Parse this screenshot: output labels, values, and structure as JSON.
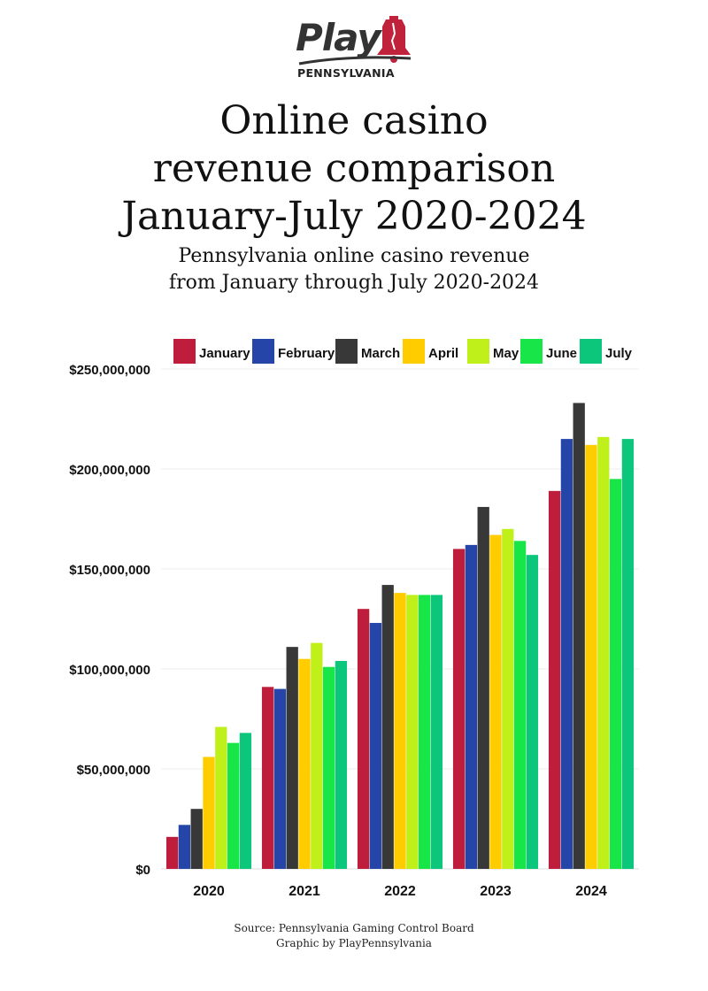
{
  "brand": {
    "name": "Play",
    "subname": "PENNSYLVANIA",
    "colors": {
      "dark": "#333333",
      "red": "#c0223b"
    }
  },
  "header": {
    "title_lines": [
      "Online casino",
      "revenue comparison",
      "January-July 2020-2024"
    ],
    "subtitle_lines": [
      "Pennsylvania online casino revenue",
      "from January through July 2020-2024"
    ]
  },
  "footer": {
    "source": "Source: Pennsylvania Gaming Control Board",
    "credit": "Graphic by PlayPennsylvania"
  },
  "chart_data": {
    "type": "bar",
    "title": "Online casino revenue comparison January-July 2020-2024",
    "xlabel": "",
    "ylabel": "",
    "categories": [
      "2020",
      "2021",
      "2022",
      "2023",
      "2024"
    ],
    "ylim": [
      0,
      250000000
    ],
    "yticks": [
      0,
      50000000,
      100000000,
      150000000,
      200000000,
      250000000
    ],
    "ytick_labels": [
      "$0",
      "$50,000,000",
      "$100,000,000",
      "$150,000,000",
      "$200,000,000",
      "$250,000,000"
    ],
    "legend_position": "top",
    "grid": true,
    "series": [
      {
        "name": "January",
        "color": "#be1e3c",
        "values": [
          16000000,
          91000000,
          130000000,
          160000000,
          189000000
        ]
      },
      {
        "name": "February",
        "color": "#2545a8",
        "values": [
          22000000,
          90000000,
          123000000,
          162000000,
          215000000
        ]
      },
      {
        "name": "March",
        "color": "#383838",
        "values": [
          30000000,
          111000000,
          142000000,
          181000000,
          233000000
        ]
      },
      {
        "name": "April",
        "color": "#ffcc00",
        "values": [
          56000000,
          105000000,
          138000000,
          167000000,
          212000000
        ]
      },
      {
        "name": "May",
        "color": "#bff01a",
        "values": [
          71000000,
          113000000,
          137000000,
          170000000,
          216000000
        ]
      },
      {
        "name": "June",
        "color": "#18e548",
        "values": [
          63000000,
          101000000,
          137000000,
          164000000,
          195000000
        ]
      },
      {
        "name": "July",
        "color": "#0cc77b",
        "values": [
          68000000,
          104000000,
          137000000,
          157000000,
          215000000
        ]
      }
    ]
  }
}
